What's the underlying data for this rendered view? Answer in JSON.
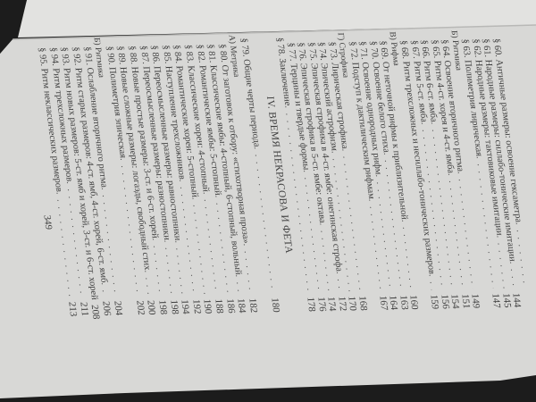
{
  "colors": {
    "page": "#d8d8d6",
    "text": "#3f3f3f",
    "background": "#1c1c1c"
  },
  "toc_upper": [
    {
      "type": "entry",
      "text": "§ 60. Античные размеры: освоение гексаметра",
      "page": ""
    },
    {
      "type": "entry",
      "text": "§ 61. Народные размеры: силлабо-тонические имитации",
      "page": "144"
    },
    {
      "type": "entry",
      "text": "§ 62. Народные размеры: тактовиковые имитации",
      "page": "145"
    },
    {
      "type": "entry",
      "text": "§ 63. Полиметрия лирическая",
      "page": "147"
    },
    {
      "type": "sub",
      "text": "Б) Ритмика",
      "page": ""
    },
    {
      "type": "entry",
      "text": "§ 64. Освоение вторичного ритма",
      "page": "149"
    },
    {
      "type": "entry",
      "text": "§ 65. Ритм 4-ст. хорея и 4-ст. ямба",
      "page": "151"
    },
    {
      "type": "entry",
      "text": "§ 66. Ритм 6-ст. ямба",
      "page": "154"
    },
    {
      "type": "entry",
      "text": "§ 67. Ритм 5-ст. ямба",
      "page": "156"
    },
    {
      "type": "entry",
      "text": "§ 68. Ритм трехсложных и несиллабо-тонических размеров",
      "page": "159"
    },
    {
      "type": "sub",
      "text": "В) Рифма",
      "page": ""
    },
    {
      "type": "entry",
      "text": "§ 69. От неточной рифмы к приблизительной",
      "page": "160"
    },
    {
      "type": "entry",
      "text": "§ 70. Освоение белого стиха",
      "page": "163"
    },
    {
      "type": "entry",
      "text": "§ 71. Освоение однородных рифм",
      "page": "164"
    },
    {
      "type": "entry",
      "text": "§ 72. Подступ к дактилическим рифмам",
      "page": "167"
    },
    {
      "type": "sub",
      "text": "Г) Строфика",
      "page": ""
    },
    {
      "type": "entry",
      "text": "§ 73. Лирическая строфика",
      "page": "168"
    },
    {
      "type": "entry",
      "text": "§ 74. Эпический астрофизм",
      "page": "170"
    },
    {
      "type": "entry",
      "text": "§ 75. Эпическая строфика в 4-ст. ямбе: онегинская строфа",
      "page": "172"
    },
    {
      "type": "entry",
      "text": "§ 76. Эпическая строфика в 5-ст. ямбе: октава",
      "page": "174"
    },
    {
      "type": "entry",
      "text": "§ 77. Терцины и твердые формы",
      "page": "176"
    },
    {
      "type": "top",
      "text": "§ 78. Заключение",
      "page": "178"
    }
  ],
  "chapter_heading": "IV. ВРЕМЯ НЕКРАСОВА И ФЕТА",
  "toc_lower": [
    {
      "type": "top",
      "text": "§ 79. Общие черты периода",
      "page": "180"
    },
    {
      "type": "sub",
      "text": "А) Метрика",
      "page": ""
    },
    {
      "type": "entry",
      "text": "§ 80. От заготовок к отбору: «стихотворная проза»",
      "page": "182"
    },
    {
      "type": "entry",
      "text": "§ 81. Классические ямбы: 4-стопный, 6-стопный, вольный",
      "page": "184"
    },
    {
      "type": "entry",
      "text": "§ 82. Романтические ямбы: 5-стопный",
      "page": "186"
    },
    {
      "type": "entry",
      "text": "§ 83. Классические хореи: 4-стопный",
      "page": "188"
    },
    {
      "type": "entry",
      "text": "§ 84. Романтические хореи: 5-стопный",
      "page": "190"
    },
    {
      "type": "entry",
      "text": "§ 85. Наступление трехсложников",
      "page": "192"
    },
    {
      "type": "entry",
      "text": "§ 86. Переосмысленные размеры: равностопники",
      "page": "194"
    },
    {
      "type": "entry",
      "text": "§ 87. Переосмысленные размеры: разностопники",
      "page": "198"
    },
    {
      "type": "entry",
      "text": "§ 88. Новые простые размеры: 3-ст. и 6-ст. хорей",
      "page": "198"
    },
    {
      "type": "entry",
      "text": "§ 89. Новые сложные размеры: логаэды, свободный стих",
      "page": "200"
    },
    {
      "type": "entry",
      "text": "§ 90. Полиметрия эпическая",
      "page": "202"
    },
    {
      "type": "sub",
      "text": "Б) Ритмика",
      "page": ""
    },
    {
      "type": "entry",
      "text": "§ 91. Ослабление вторичного ритма",
      "page": "204"
    },
    {
      "type": "entry",
      "text": "§ 92. Ритм старых размеров: 4-ст. ямб, 4-ст. хорей, 6-ст. ямб",
      "page": "206"
    },
    {
      "type": "entry",
      "text": "§ 93. Ритм новых размеров: 5-ст. ямб и хорей, 3-ст. и 6-ст. хорей",
      "page": "208"
    },
    {
      "type": "entry",
      "text": "§ 94. Ритм трехсложных размеров",
      "page": "211"
    },
    {
      "type": "entry",
      "text": "§ 95. Ритм неклассических размеров",
      "page": "213"
    }
  ],
  "page_number": "349"
}
